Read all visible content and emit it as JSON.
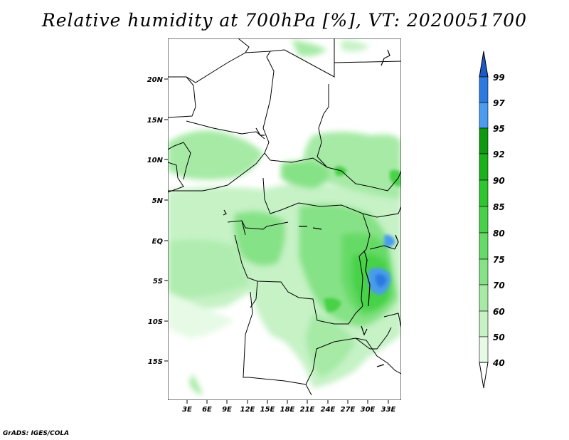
{
  "title": "Relative humidity at 700hPa [%], VT: 2020051700",
  "credit": "GrADS: IGES/COLA",
  "map": {
    "lat_labels": [
      "20N",
      "15N",
      "10N",
      "5N",
      "EQ",
      "5S",
      "10S",
      "15S"
    ],
    "lon_labels": [
      "3E",
      "6E",
      "9E",
      "12E",
      "15E",
      "18E",
      "21E",
      "24E",
      "27E",
      "30E",
      "33E"
    ]
  },
  "colorbar": {
    "labels": [
      "40",
      "50",
      "60",
      "70",
      "75",
      "80",
      "85",
      "90",
      "92",
      "95",
      "97",
      "99"
    ],
    "colors": [
      "#ffffff",
      "#e6fae6",
      "#c6f2c6",
      "#a6eaa6",
      "#86e286",
      "#66da66",
      "#46d246",
      "#2ec62e",
      "#1ab21a",
      "#0e9a0e",
      "#4a9cec",
      "#2a7ae0",
      "#1a5ac8"
    ]
  }
}
